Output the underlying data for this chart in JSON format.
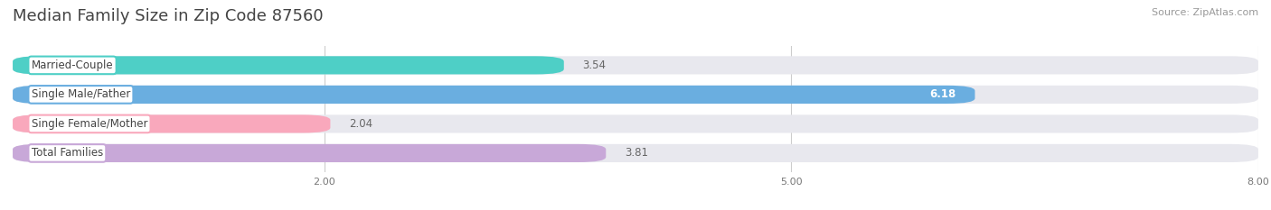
{
  "title": "Median Family Size in Zip Code 87560",
  "source": "Source: ZipAtlas.com",
  "categories": [
    "Married-Couple",
    "Single Male/Father",
    "Single Female/Mother",
    "Total Families"
  ],
  "values": [
    3.54,
    6.18,
    2.04,
    3.81
  ],
  "bar_colors": [
    "#4ecfc6",
    "#6aaee0",
    "#f9a8bc",
    "#c8a8d8"
  ],
  "value_colors": [
    "#555555",
    "#ffffff",
    "#555555",
    "#555555"
  ],
  "xlim": [
    0,
    8.0
  ],
  "xticks": [
    2.0,
    5.0,
    8.0
  ],
  "bar_height": 0.62,
  "background_color": "#ffffff",
  "bar_background_color": "#e8e8ee",
  "title_fontsize": 13,
  "label_fontsize": 8.5,
  "value_fontsize": 8.5,
  "source_fontsize": 8
}
